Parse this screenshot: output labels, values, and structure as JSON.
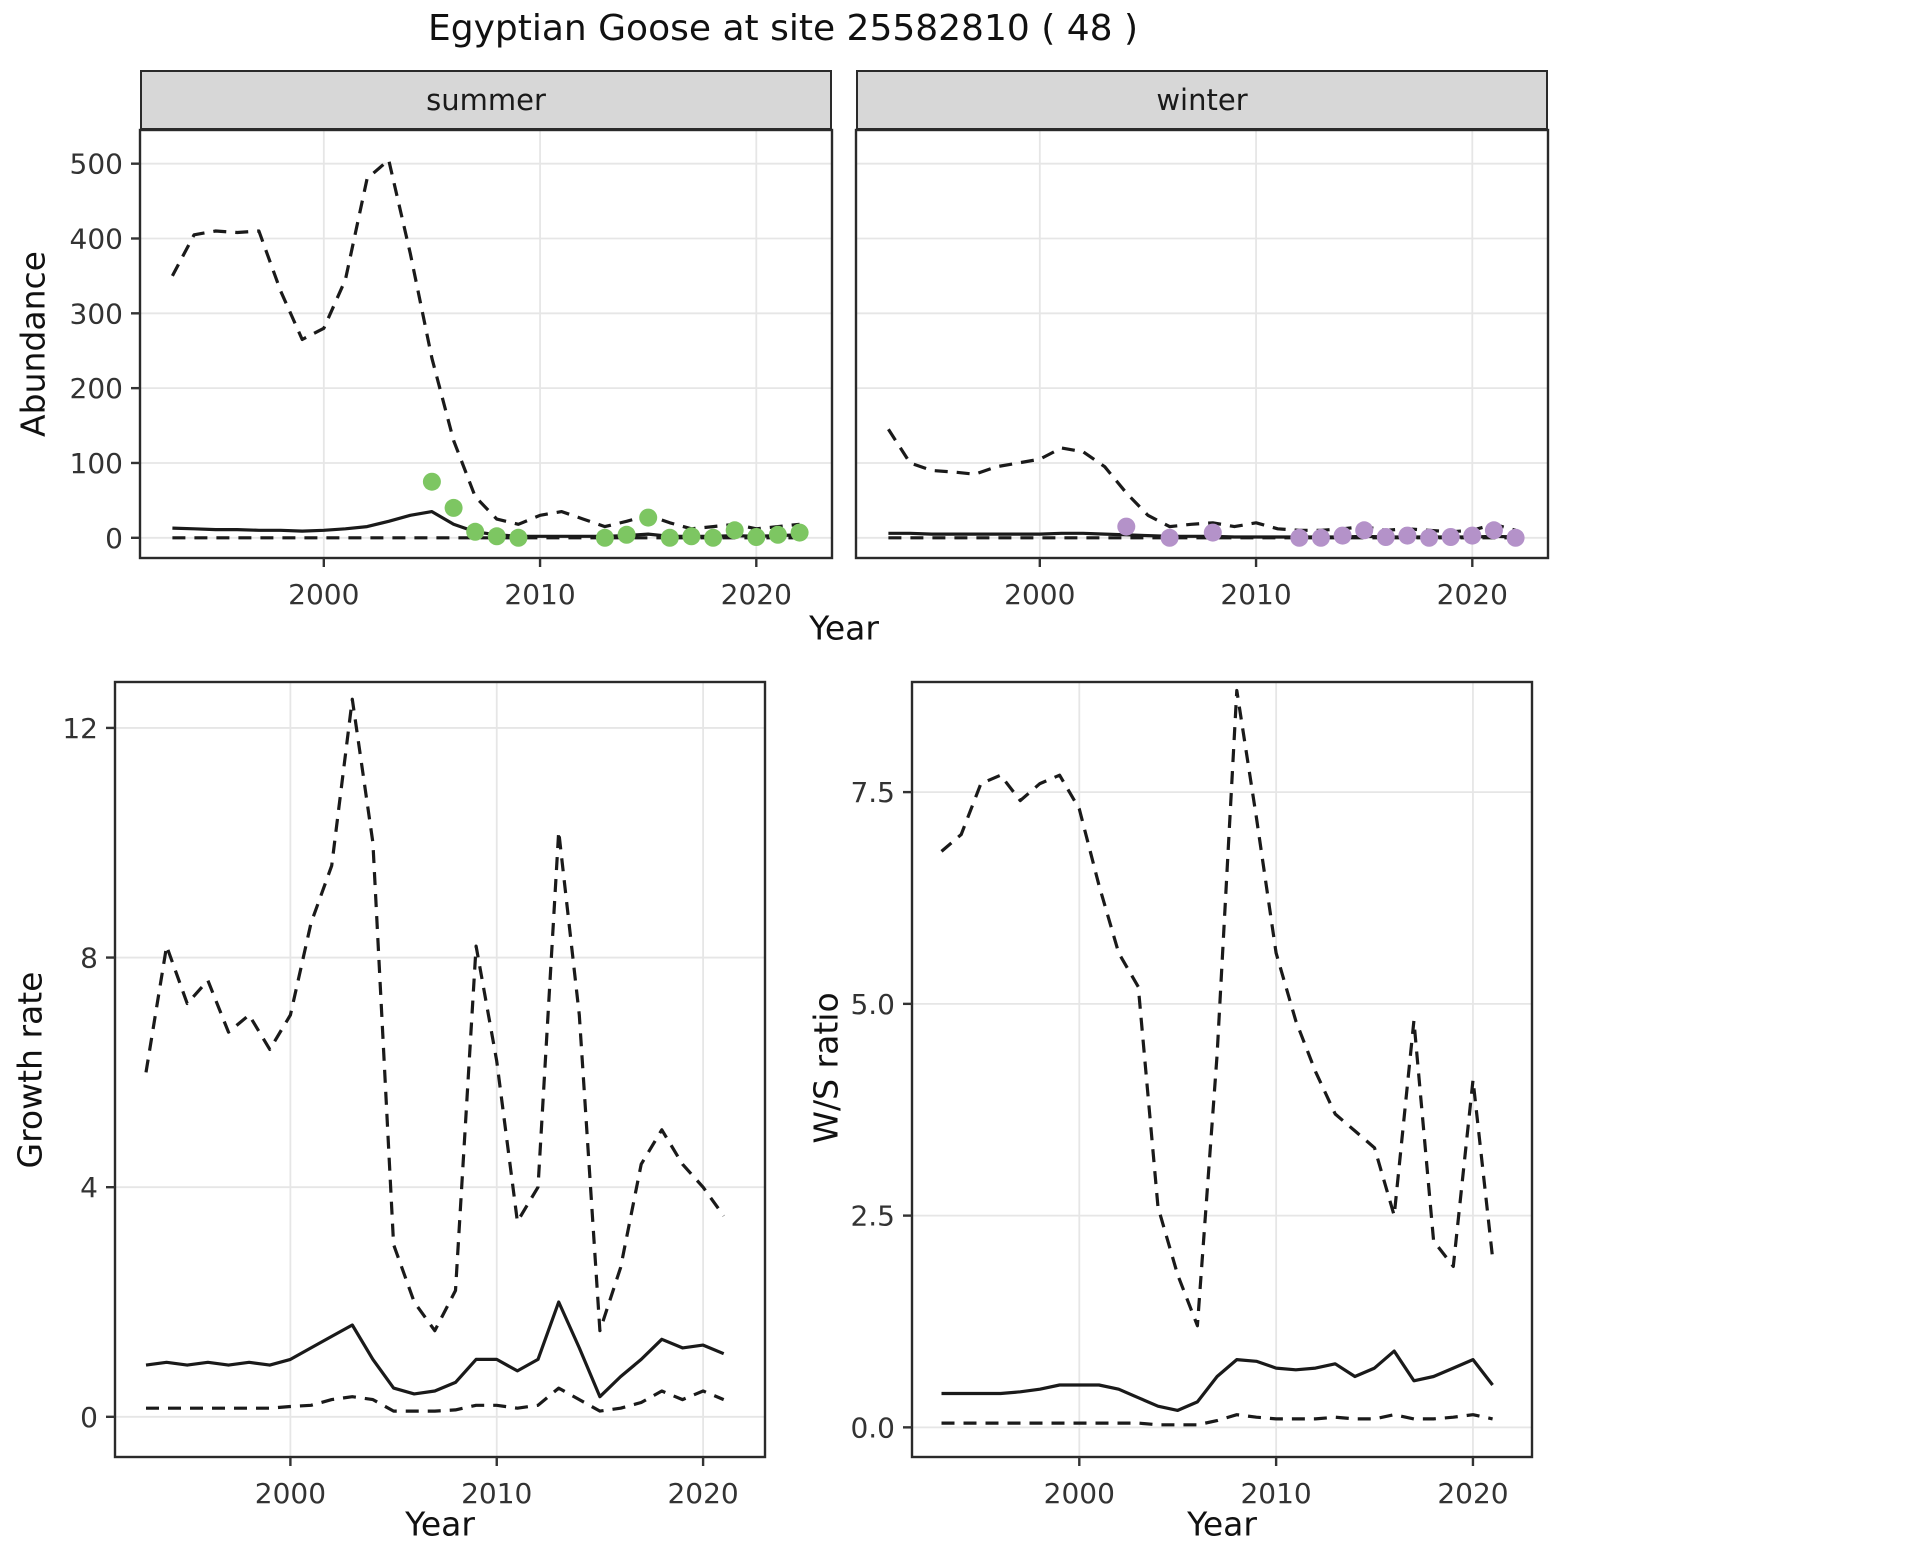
{
  "title": "Egyptian Goose at site 25582810 ( 48 )",
  "axes": {
    "x_label": "Year",
    "abundance_label": "Abundance",
    "growth_label": "Growth rate",
    "ws_label": "W/S ratio"
  },
  "facets": {
    "summer": "summer",
    "winter": "winter"
  },
  "colors": {
    "line": "#1a1a1a",
    "grid": "#e6e6e6",
    "panel_border": "#2a2a2a",
    "strip_bg": "#d7d7d7",
    "tick_text": "#333333",
    "summer_points": "#7dc662",
    "winter_points": "#b492c9"
  },
  "chart_data": [
    {
      "id": "summer-abundance",
      "type": "line",
      "facet": "summer",
      "ylabel": "Abundance",
      "xlabel": "Year",
      "xlim": [
        1991.5,
        2023.5
      ],
      "ylim": [
        -27,
        545
      ],
      "xticks": [
        2000,
        2010,
        2020
      ],
      "xtick_labels": [
        "2000",
        "2010",
        "2020"
      ],
      "yticks": [
        0,
        100,
        200,
        300,
        400,
        500
      ],
      "ytick_labels": [
        "0",
        "100",
        "200",
        "300",
        "400",
        "500"
      ],
      "show_y_tick_labels": true,
      "grid": true,
      "x": [
        1993,
        1994,
        1995,
        1996,
        1997,
        1998,
        1999,
        2000,
        2001,
        2002,
        2003,
        2004,
        2005,
        2006,
        2007,
        2008,
        2009,
        2010,
        2011,
        2012,
        2013,
        2014,
        2015,
        2016,
        2017,
        2018,
        2019,
        2020,
        2021,
        2022
      ],
      "series": [
        {
          "name": "upper_95ci",
          "style": "dashed",
          "values": [
            350,
            405,
            410,
            408,
            410,
            330,
            265,
            280,
            345,
            480,
            505,
            380,
            240,
            130,
            55,
            25,
            18,
            30,
            35,
            25,
            15,
            22,
            30,
            20,
            12,
            15,
            18,
            12,
            15,
            18
          ]
        },
        {
          "name": "median",
          "style": "solid",
          "values": [
            13,
            12,
            11,
            11,
            10,
            10,
            9,
            10,
            12,
            15,
            22,
            30,
            35,
            18,
            8,
            4,
            2,
            2,
            2,
            2,
            2,
            3,
            5,
            2,
            2,
            2,
            3,
            2,
            3,
            4
          ]
        },
        {
          "name": "lower_95ci",
          "style": "dashed",
          "values": [
            0,
            0,
            0,
            0,
            0,
            0,
            0,
            0,
            0,
            0,
            0,
            0,
            0,
            0,
            0,
            0,
            0,
            0,
            0,
            0,
            0,
            0,
            0,
            0,
            0,
            0,
            0,
            0,
            0,
            0
          ]
        }
      ],
      "points": {
        "name": "observed_counts",
        "color_key": "summer_points",
        "x": [
          2005,
          2006,
          2007,
          2008,
          2009,
          2013,
          2014,
          2015,
          2016,
          2017,
          2018,
          2019,
          2020,
          2021,
          2022
        ],
        "y": [
          75,
          40,
          8,
          2,
          0,
          0,
          4,
          27,
          0,
          2,
          0,
          10,
          1,
          4,
          7
        ]
      }
    },
    {
      "id": "winter-abundance",
      "type": "line",
      "facet": "winter",
      "ylabel": "Abundance",
      "xlabel": "Year",
      "xlim": [
        1991.5,
        2023.5
      ],
      "ylim": [
        -27,
        545
      ],
      "xticks": [
        2000,
        2010,
        2020
      ],
      "xtick_labels": [
        "2000",
        "2010",
        "2020"
      ],
      "yticks": [
        0,
        100,
        200,
        300,
        400,
        500
      ],
      "ytick_labels": [
        "0",
        "100",
        "200",
        "300",
        "400",
        "500"
      ],
      "show_y_tick_labels": false,
      "grid": true,
      "x": [
        1993,
        1994,
        1995,
        1996,
        1997,
        1998,
        1999,
        2000,
        2001,
        2002,
        2003,
        2004,
        2005,
        2006,
        2007,
        2008,
        2009,
        2010,
        2011,
        2012,
        2013,
        2014,
        2015,
        2016,
        2017,
        2018,
        2019,
        2020,
        2021,
        2022
      ],
      "series": [
        {
          "name": "upper_95ci",
          "style": "dashed",
          "values": [
            145,
            100,
            90,
            88,
            85,
            95,
            100,
            105,
            120,
            115,
            95,
            60,
            30,
            15,
            18,
            20,
            15,
            20,
            12,
            10,
            10,
            12,
            15,
            10,
            12,
            10,
            8,
            10,
            18,
            10
          ]
        },
        {
          "name": "median",
          "style": "solid",
          "values": [
            6,
            6,
            5,
            5,
            5,
            5,
            5,
            5,
            6,
            6,
            5,
            4,
            3,
            2,
            2,
            2,
            1,
            1,
            1,
            1,
            1,
            1,
            2,
            1,
            1,
            1,
            1,
            1,
            2,
            1
          ]
        },
        {
          "name": "lower_95ci",
          "style": "dashed",
          "values": [
            0,
            0,
            0,
            0,
            0,
            0,
            0,
            0,
            0,
            0,
            0,
            0,
            0,
            0,
            0,
            0,
            0,
            0,
            0,
            0,
            0,
            0,
            0,
            0,
            0,
            0,
            0,
            0,
            0,
            0
          ]
        }
      ],
      "points": {
        "name": "observed_counts",
        "color_key": "winter_points",
        "x": [
          2004,
          2006,
          2008,
          2012,
          2013,
          2014,
          2015,
          2016,
          2017,
          2018,
          2019,
          2020,
          2021,
          2022
        ],
        "y": [
          15,
          0,
          7,
          0,
          0,
          3,
          10,
          1,
          3,
          0,
          1,
          3,
          10,
          0
        ]
      }
    },
    {
      "id": "growth-rate",
      "type": "line",
      "ylabel": "Growth rate",
      "xlabel": "Year",
      "xlim": [
        1991.5,
        2023
      ],
      "ylim": [
        -0.7,
        12.8
      ],
      "xticks": [
        2000,
        2010,
        2020
      ],
      "xtick_labels": [
        "2000",
        "2010",
        "2020"
      ],
      "yticks": [
        0,
        4,
        8,
        12
      ],
      "ytick_labels": [
        "0",
        "4",
        "8",
        "12"
      ],
      "show_y_tick_labels": true,
      "grid": true,
      "x": [
        1993,
        1994,
        1995,
        1996,
        1997,
        1998,
        1999,
        2000,
        2001,
        2002,
        2003,
        2004,
        2005,
        2006,
        2007,
        2008,
        2009,
        2010,
        2011,
        2012,
        2013,
        2014,
        2015,
        2016,
        2017,
        2018,
        2019,
        2020,
        2021
      ],
      "series": [
        {
          "name": "upper_95ci",
          "style": "dashed",
          "values": [
            6.0,
            8.2,
            7.2,
            7.6,
            6.7,
            7.0,
            6.4,
            7.0,
            8.6,
            9.6,
            12.5,
            10.0,
            3.0,
            2.0,
            1.5,
            2.2,
            8.2,
            6.2,
            3.4,
            4.0,
            10.2,
            7.0,
            1.5,
            2.6,
            4.4,
            5.0,
            4.4,
            4.0,
            3.5
          ]
        },
        {
          "name": "median",
          "style": "solid",
          "values": [
            0.9,
            0.95,
            0.9,
            0.95,
            0.9,
            0.95,
            0.9,
            1.0,
            1.2,
            1.4,
            1.6,
            1.0,
            0.5,
            0.4,
            0.45,
            0.6,
            1.0,
            1.0,
            0.8,
            1.0,
            2.0,
            1.2,
            0.35,
            0.7,
            1.0,
            1.35,
            1.2,
            1.25,
            1.1
          ]
        },
        {
          "name": "lower_95ci",
          "style": "dashed",
          "values": [
            0.15,
            0.15,
            0.15,
            0.15,
            0.15,
            0.15,
            0.15,
            0.18,
            0.2,
            0.3,
            0.35,
            0.3,
            0.1,
            0.1,
            0.1,
            0.12,
            0.2,
            0.2,
            0.15,
            0.2,
            0.5,
            0.3,
            0.1,
            0.15,
            0.25,
            0.45,
            0.3,
            0.45,
            0.3
          ]
        }
      ],
      "points": null
    },
    {
      "id": "ws-ratio",
      "type": "line",
      "ylabel": "W/S ratio",
      "xlabel": "Year",
      "xlim": [
        1991.5,
        2023
      ],
      "ylim": [
        -0.35,
        8.8
      ],
      "xticks": [
        2000,
        2010,
        2020
      ],
      "xtick_labels": [
        "2000",
        "2010",
        "2020"
      ],
      "yticks": [
        0,
        2.5,
        5.0,
        7.5
      ],
      "ytick_labels": [
        "0.0",
        "2.5",
        "5.0",
        "7.5"
      ],
      "show_y_tick_labels": true,
      "grid": true,
      "x": [
        1993,
        1994,
        1995,
        1996,
        1997,
        1998,
        1999,
        2000,
        2001,
        2002,
        2003,
        2004,
        2005,
        2006,
        2007,
        2008,
        2009,
        2010,
        2011,
        2012,
        2013,
        2014,
        2015,
        2016,
        2017,
        2018,
        2019,
        2020,
        2021
      ],
      "series": [
        {
          "name": "upper_95ci",
          "style": "dashed",
          "values": [
            6.8,
            7.0,
            7.6,
            7.7,
            7.4,
            7.6,
            7.7,
            7.3,
            6.4,
            5.6,
            5.2,
            2.6,
            1.8,
            1.2,
            4.4,
            8.7,
            7.2,
            5.6,
            4.8,
            4.2,
            3.7,
            3.5,
            3.3,
            2.5,
            4.8,
            2.2,
            1.9,
            4.1,
            2.0
          ]
        },
        {
          "name": "median",
          "style": "solid",
          "values": [
            0.4,
            0.4,
            0.4,
            0.4,
            0.42,
            0.45,
            0.5,
            0.5,
            0.5,
            0.45,
            0.35,
            0.25,
            0.2,
            0.3,
            0.6,
            0.8,
            0.78,
            0.7,
            0.68,
            0.7,
            0.75,
            0.6,
            0.7,
            0.9,
            0.55,
            0.6,
            0.7,
            0.8,
            0.5
          ]
        },
        {
          "name": "lower_95ci",
          "style": "dashed",
          "values": [
            0.05,
            0.05,
            0.05,
            0.05,
            0.05,
            0.05,
            0.05,
            0.05,
            0.05,
            0.05,
            0.05,
            0.03,
            0.03,
            0.03,
            0.08,
            0.15,
            0.12,
            0.1,
            0.1,
            0.1,
            0.12,
            0.1,
            0.1,
            0.15,
            0.1,
            0.1,
            0.12,
            0.15,
            0.1
          ]
        }
      ],
      "points": null
    }
  ]
}
